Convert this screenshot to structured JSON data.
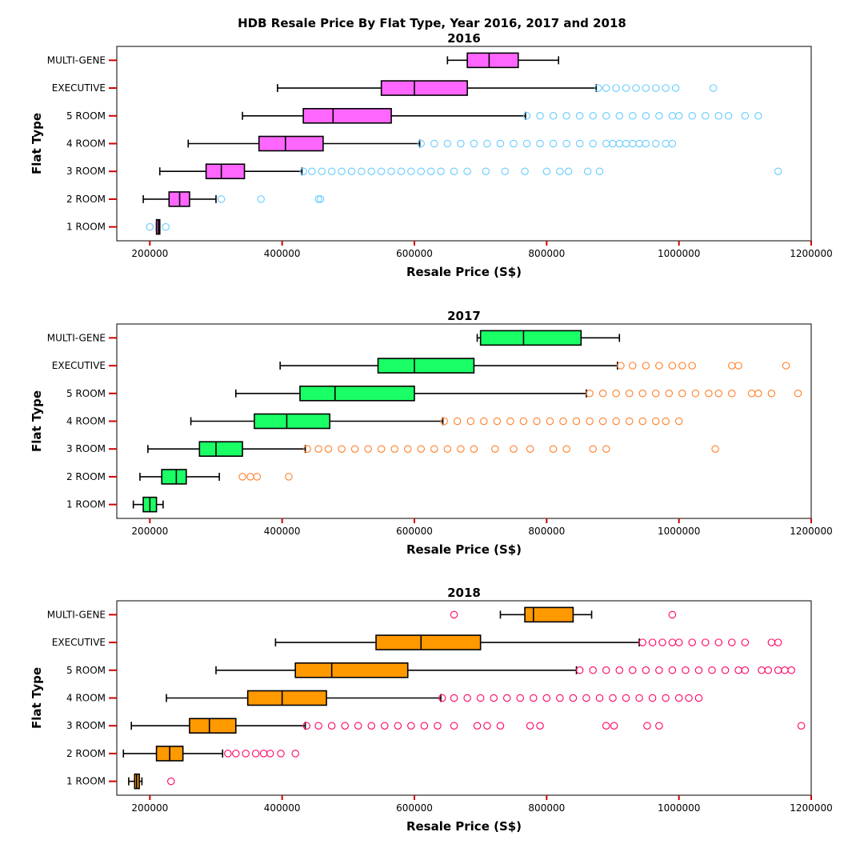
{
  "figure": {
    "suptitle": "HDB Resale Price By Flat Type, Year 2016, 2017 and 2018"
  },
  "chart_data": [
    {
      "type": "box",
      "title": "2016",
      "xlabel": "Resale Price (S$)",
      "ylabel": "Flat Type",
      "xlim": [
        150000,
        1200000
      ],
      "xticks": [
        200000,
        400000,
        600000,
        800000,
        1000000,
        1200000
      ],
      "xtick_labels": [
        "200000",
        "400000",
        "600000",
        "800000",
        "1000000",
        "1200000"
      ],
      "box_color": "#ff66ff",
      "outlier_color": "#66ccff",
      "categories": [
        "1 ROOM",
        "2 ROOM",
        "3 ROOM",
        "4 ROOM",
        "5 ROOM",
        "EXECUTIVE",
        "MULTI-GENE"
      ],
      "boxes": [
        {
          "name": "1 ROOM",
          "whislo": 210000,
          "q1": 210000,
          "med": 213000,
          "q3": 215000,
          "whishi": 215000,
          "fliers": [
            200000,
            224000
          ]
        },
        {
          "name": "2 ROOM",
          "whislo": 190000,
          "q1": 229000,
          "med": 245000,
          "q3": 260000,
          "whishi": 300000,
          "fliers": [
            308000,
            368000,
            455000,
            458000
          ]
        },
        {
          "name": "3 ROOM",
          "whislo": 215000,
          "q1": 285000,
          "med": 308000,
          "q3": 343000,
          "whishi": 430000,
          "fliers": [
            432000,
            445000,
            460000,
            475000,
            490000,
            505000,
            520000,
            535000,
            550000,
            565000,
            580000,
            595000,
            610000,
            625000,
            640000,
            660000,
            680000,
            708000,
            737000,
            767000,
            800000,
            820000,
            833000,
            862000,
            880000,
            1150000
          ]
        },
        {
          "name": "4 ROOM",
          "whislo": 258000,
          "q1": 365000,
          "med": 405000,
          "q3": 462000,
          "whishi": 608000,
          "fliers": [
            610000,
            630000,
            650000,
            670000,
            690000,
            710000,
            730000,
            750000,
            770000,
            790000,
            810000,
            830000,
            850000,
            870000,
            890000,
            900000,
            910000,
            920000,
            930000,
            940000,
            950000,
            965000,
            980000,
            990000
          ]
        },
        {
          "name": "5 ROOM",
          "whislo": 340000,
          "q1": 432000,
          "med": 477000,
          "q3": 565000,
          "whishi": 768000,
          "fliers": [
            770000,
            790000,
            810000,
            830000,
            850000,
            870000,
            890000,
            910000,
            930000,
            950000,
            970000,
            990000,
            1000000,
            1020000,
            1040000,
            1060000,
            1075000,
            1100000,
            1120000
          ]
        },
        {
          "name": "EXECUTIVE",
          "whislo": 393000,
          "q1": 550000,
          "med": 600000,
          "q3": 680000,
          "whishi": 875000,
          "fliers": [
            878000,
            890000,
            905000,
            920000,
            935000,
            950000,
            965000,
            980000,
            995000,
            1052000
          ]
        },
        {
          "name": "MULTI-GENE",
          "whislo": 650000,
          "q1": 680000,
          "med": 713000,
          "q3": 757000,
          "whishi": 818000,
          "fliers": []
        }
      ]
    },
    {
      "type": "box",
      "title": "2017",
      "xlabel": "Resale Price (S$)",
      "ylabel": "Flat Type",
      "xlim": [
        150000,
        1200000
      ],
      "xticks": [
        200000,
        400000,
        600000,
        800000,
        1000000,
        1200000
      ],
      "xtick_labels": [
        "200000",
        "400000",
        "600000",
        "800000",
        "1000000",
        "1200000"
      ],
      "box_color": "#1aff66",
      "outlier_color": "#ff7f27",
      "categories": [
        "1 ROOM",
        "2 ROOM",
        "3 ROOM",
        "4 ROOM",
        "5 ROOM",
        "EXECUTIVE",
        "MULTI-GENE"
      ],
      "boxes": [
        {
          "name": "1 ROOM",
          "whislo": 175000,
          "q1": 190000,
          "med": 200000,
          "q3": 210000,
          "whishi": 220000,
          "fliers": []
        },
        {
          "name": "2 ROOM",
          "whislo": 185000,
          "q1": 218000,
          "med": 240000,
          "q3": 255000,
          "whishi": 305000,
          "fliers": [
            340000,
            352000,
            362000,
            410000
          ]
        },
        {
          "name": "3 ROOM",
          "whislo": 197000,
          "q1": 275000,
          "med": 300000,
          "q3": 340000,
          "whishi": 435000,
          "fliers": [
            438000,
            455000,
            470000,
            490000,
            510000,
            530000,
            550000,
            570000,
            590000,
            610000,
            630000,
            650000,
            670000,
            690000,
            722000,
            750000,
            775000,
            810000,
            830000,
            870000,
            890000,
            1055000
          ]
        },
        {
          "name": "4 ROOM",
          "whislo": 262000,
          "q1": 358000,
          "med": 407000,
          "q3": 472000,
          "whishi": 643000,
          "fliers": [
            645000,
            665000,
            685000,
            705000,
            725000,
            745000,
            765000,
            785000,
            805000,
            825000,
            845000,
            865000,
            885000,
            905000,
            925000,
            945000,
            965000,
            980000,
            1000000
          ]
        },
        {
          "name": "5 ROOM",
          "whislo": 330000,
          "q1": 427000,
          "med": 480000,
          "q3": 600000,
          "whishi": 860000,
          "fliers": [
            865000,
            885000,
            905000,
            925000,
            945000,
            965000,
            985000,
            1005000,
            1025000,
            1045000,
            1060000,
            1080000,
            1110000,
            1120000,
            1140000,
            1180000
          ]
        },
        {
          "name": "EXECUTIVE",
          "whislo": 397000,
          "q1": 545000,
          "med": 600000,
          "q3": 690000,
          "whishi": 907000,
          "fliers": [
            912000,
            930000,
            950000,
            970000,
            990000,
            1005000,
            1020000,
            1080000,
            1090000,
            1162000
          ]
        },
        {
          "name": "MULTI-GENE",
          "whislo": 695000,
          "q1": 700000,
          "med": 765000,
          "q3": 852000,
          "whishi": 910000,
          "fliers": []
        }
      ]
    },
    {
      "type": "box",
      "title": "2018",
      "xlabel": "Resale Price (S$)",
      "ylabel": "Flat Type",
      "xlim": [
        150000,
        1200000
      ],
      "xticks": [
        200000,
        400000,
        600000,
        800000,
        1000000,
        1200000
      ],
      "xtick_labels": [
        "200000",
        "400000",
        "600000",
        "800000",
        "1000000",
        "1200000"
      ],
      "box_color": "#ff9900",
      "outlier_color": "#ff0066",
      "categories": [
        "1 ROOM",
        "2 ROOM",
        "3 ROOM",
        "4 ROOM",
        "5 ROOM",
        "EXECUTIVE",
        "MULTI-GENE"
      ],
      "boxes": [
        {
          "name": "1 ROOM",
          "whislo": 168000,
          "q1": 177000,
          "med": 180000,
          "q3": 184000,
          "whishi": 188000,
          "fliers": [
            232000
          ]
        },
        {
          "name": "2 ROOM",
          "whislo": 160000,
          "q1": 210000,
          "med": 230000,
          "q3": 250000,
          "whishi": 310000,
          "fliers": [
            318000,
            330000,
            345000,
            360000,
            372000,
            382000,
            398000,
            420000
          ]
        },
        {
          "name": "3 ROOM",
          "whislo": 172000,
          "q1": 260000,
          "med": 290000,
          "q3": 330000,
          "whishi": 435000,
          "fliers": [
            437000,
            455000,
            475000,
            495000,
            515000,
            535000,
            555000,
            575000,
            595000,
            615000,
            635000,
            660000,
            695000,
            710000,
            730000,
            775000,
            790000,
            890000,
            902000,
            952000,
            970000,
            1185000
          ]
        },
        {
          "name": "4 ROOM",
          "whislo": 225000,
          "q1": 348000,
          "med": 400000,
          "q3": 467000,
          "whishi": 640000,
          "fliers": [
            642000,
            660000,
            680000,
            700000,
            720000,
            740000,
            760000,
            780000,
            800000,
            820000,
            840000,
            860000,
            880000,
            900000,
            920000,
            940000,
            960000,
            980000,
            1000000,
            1015000,
            1030000
          ]
        },
        {
          "name": "5 ROOM",
          "whislo": 300000,
          "q1": 420000,
          "med": 475000,
          "q3": 590000,
          "whishi": 845000,
          "fliers": [
            850000,
            870000,
            890000,
            910000,
            930000,
            950000,
            970000,
            990000,
            1010000,
            1030000,
            1050000,
            1070000,
            1090000,
            1100000,
            1125000,
            1135000,
            1150000,
            1160000,
            1170000
          ]
        },
        {
          "name": "EXECUTIVE",
          "whislo": 390000,
          "q1": 542000,
          "med": 610000,
          "q3": 700000,
          "whishi": 940000,
          "fliers": [
            945000,
            960000,
            975000,
            990000,
            1000000,
            1020000,
            1040000,
            1060000,
            1080000,
            1100000,
            1140000,
            1150000
          ]
        },
        {
          "name": "MULTI-GENE",
          "whislo": 730000,
          "q1": 767000,
          "med": 780000,
          "q3": 840000,
          "whishi": 868000,
          "fliers": [
            660000,
            990000
          ]
        }
      ]
    }
  ]
}
